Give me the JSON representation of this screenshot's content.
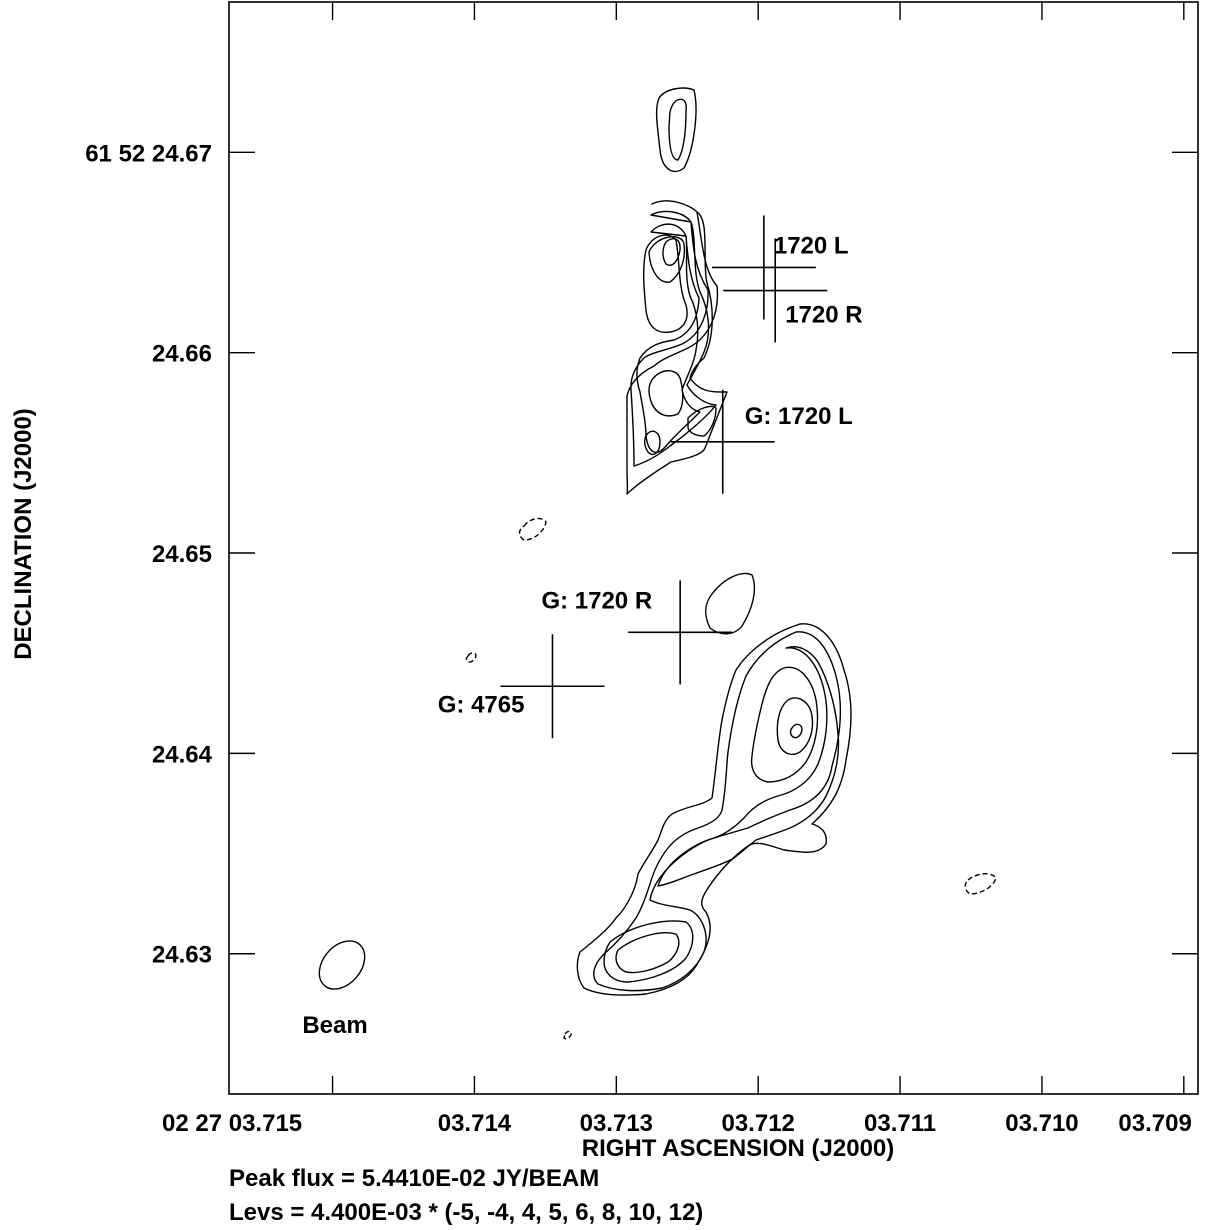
{
  "chart_data": {
    "type": "contour",
    "xlabel": "RIGHT ASCENSION (J2000)",
    "ylabel": "DECLINATION (J2000)",
    "x_ticks": [
      {
        "value": 3.715,
        "label": "02 27 03.715"
      },
      {
        "value": 3.714,
        "label": "03.714"
      },
      {
        "value": 3.713,
        "label": "03.713"
      },
      {
        "value": 3.712,
        "label": "03.712"
      },
      {
        "value": 3.711,
        "label": "03.711"
      },
      {
        "value": 3.71,
        "label": "03.710"
      },
      {
        "value": 3.709,
        "label": "03.709"
      }
    ],
    "y_ticks": [
      {
        "value": 24.67,
        "label": "61 52 24.67"
      },
      {
        "value": 24.66,
        "label": "24.66"
      },
      {
        "value": 24.65,
        "label": "24.65"
      },
      {
        "value": 24.64,
        "label": "24.64"
      },
      {
        "value": 24.63,
        "label": "24.63"
      }
    ],
    "xlim": [
      3.71573,
      3.7089
    ],
    "ylim": [
      24.623,
      24.6775
    ],
    "markers": [
      {
        "label": "1720 L",
        "ra": 3.71196,
        "dec": 24.66425
      },
      {
        "label": "1720 R",
        "ra": 3.71188,
        "dec": 24.6631
      },
      {
        "label": "G: 1720 L",
        "ra": 3.71225,
        "dec": 24.65555
      },
      {
        "label": "G: 1720 R",
        "ra": 3.71255,
        "dec": 24.64604
      },
      {
        "label": "G: 4765",
        "ra": 3.71345,
        "dec": 24.64335
      }
    ],
    "beam_label": "Beam",
    "peak_flux": "Peak flux =  5.4410E-02 JY/BEAM",
    "levels": "Levs = 4.400E-03 * (-5, -4, 4, 5, 6, 8, 10, 12)",
    "level_base": 0.0044,
    "level_multipliers": [
      -5,
      -4,
      4,
      5,
      6,
      8,
      10,
      12
    ],
    "peak_flux_value": 0.05441
  }
}
